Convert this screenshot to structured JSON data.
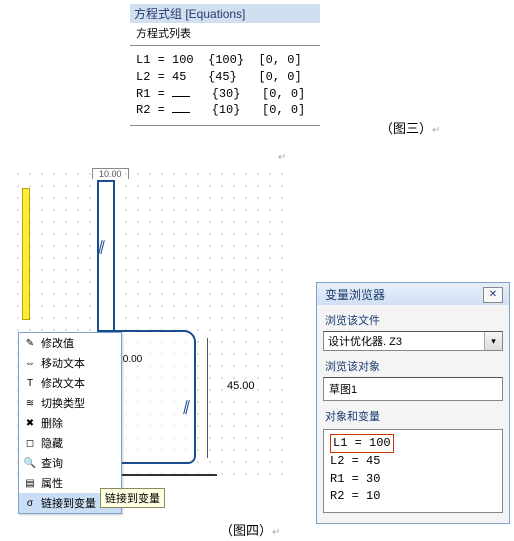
{
  "equations_panel": {
    "title": "方程式组 [Equations]",
    "subheader": "方程式列表",
    "rows": [
      {
        "name": "L1",
        "value": "100",
        "computed": "{100}",
        "range": "[0, 0]"
      },
      {
        "name": "L2",
        "value": "45",
        "computed": "{45}",
        "range": "[0, 0]"
      },
      {
        "name": "R1",
        "value": "",
        "computed": "{30}",
        "range": "[0, 0]"
      },
      {
        "name": "R2",
        "value": "",
        "computed": "{10}",
        "range": "[0, 0]"
      }
    ]
  },
  "figure3_label": "（图三）",
  "figure4_label": "（图四）",
  "sketch": {
    "top_dim": "10.00",
    "radius_label": "R10.00",
    "side_dim": "45.00"
  },
  "context_menu": {
    "items": [
      {
        "icon": "✎",
        "label": "修改值"
      },
      {
        "icon": "⇔",
        "label": "移动文本"
      },
      {
        "icon": "T",
        "label": "修改文本"
      },
      {
        "icon": "≋",
        "label": "切换类型"
      },
      {
        "icon": "✖",
        "label": "删除"
      },
      {
        "icon": "◻",
        "label": "隐藏"
      },
      {
        "icon": "🔍",
        "label": "查询"
      },
      {
        "icon": "▤",
        "label": "属性"
      },
      {
        "icon": "σ",
        "label": "链接到变量"
      }
    ],
    "tooltip": "链接到变量"
  },
  "variable_browser": {
    "title": "变量浏览器",
    "file_label": "浏览该文件",
    "file_value": "设计优化器. Z3",
    "object_label": "浏览该对象",
    "object_value": "草图1",
    "vars_label": "对象和变量",
    "vars": [
      {
        "name": "L1",
        "value": "100",
        "selected": true
      },
      {
        "name": "L2",
        "value": "45",
        "selected": false
      },
      {
        "name": "R1",
        "value": "30",
        "selected": false
      },
      {
        "name": "R2",
        "value": "10",
        "selected": false
      }
    ]
  },
  "colors": {
    "accent": "#1a4d8f",
    "panel": "#d0e0f0",
    "highlight": "#cc3300"
  }
}
